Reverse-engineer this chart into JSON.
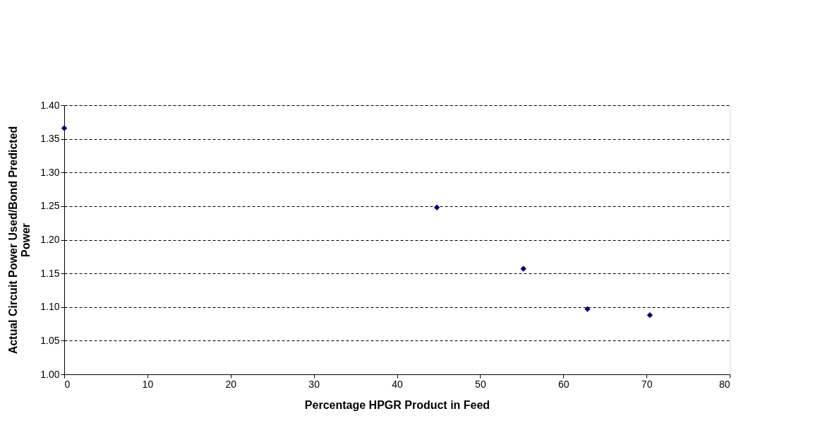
{
  "chart_data": {
    "type": "scatter",
    "xlabel": "Percentage HPGR Product in Feed",
    "ylabel": "Actual Circuit Power Used/Bond Predicted\nPower",
    "x": [
      0,
      44.8,
      55.2,
      62.9,
      70.4
    ],
    "series": [
      {
        "color": "#000080",
        "values": [
          1.366,
          1.248,
          1.157,
          1.097,
          1.088
        ]
      }
    ],
    "xlim": [
      0,
      80
    ],
    "xticks": [
      0,
      10,
      20,
      30,
      40,
      50,
      60,
      70,
      80
    ],
    "ylim": [
      1.0,
      1.4
    ],
    "yticks": [
      {
        "value": 1.0,
        "label": "1.00"
      },
      {
        "value": 1.05,
        "label": "1.05"
      },
      {
        "value": 1.1,
        "label": "1.10"
      },
      {
        "value": 1.15,
        "label": "1.15"
      },
      {
        "value": 1.2,
        "label": "1.20"
      },
      {
        "value": 1.25,
        "label": "1.25"
      },
      {
        "value": 1.3,
        "label": "1.30"
      },
      {
        "value": 1.35,
        "label": "1.35"
      },
      {
        "value": 1.4,
        "label": "1.40"
      }
    ],
    "grid": "y",
    "marker": "diamond"
  }
}
